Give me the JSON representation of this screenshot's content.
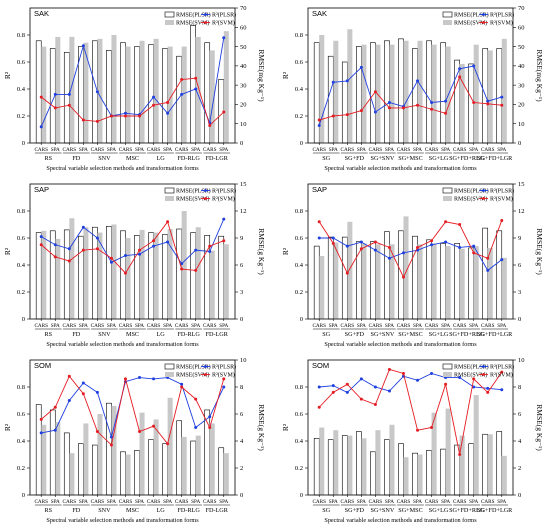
{
  "colors": {
    "plsr_line": "#1f3fe0",
    "svm_line": "#e51c23",
    "bar_plsr_edge": "#000000",
    "bar_svm_fill": "#c8c8c8"
  },
  "chart_data": [
    {
      "type": "bar",
      "title": "SAK",
      "ylabel": "R²",
      "y2label": "RMSE(mg Kg⁻¹)",
      "xlabel": "Spectral variable selection methods and transformation forms",
      "ylim": [
        0,
        1.0
      ],
      "yticks": [
        0,
        0.2,
        0.4,
        0.6,
        0.8
      ],
      "y2lim": [
        0,
        70
      ],
      "y2ticks": [
        0,
        10,
        20,
        30,
        40,
        50,
        60,
        70
      ],
      "categories": [
        "CARS",
        "SPA",
        "CARS",
        "SPA",
        "CARS",
        "SPA",
        "CARS",
        "SPA",
        "CARS",
        "SPA",
        "CARS",
        "SPA",
        "CARS",
        "SPA"
      ],
      "groups": [
        "RS",
        "FD",
        "SNV",
        "MSC",
        "LG",
        "FD-RLG",
        "FD-LGR"
      ],
      "series": [
        {
          "name": "RMSE(PLSR)",
          "kind": "bar",
          "axis": "right",
          "values": [
            53,
            49,
            47,
            50,
            53,
            48,
            52,
            50,
            51,
            49,
            45,
            61,
            52,
            33
          ]
        },
        {
          "name": "RMSE(SVM)",
          "kind": "bar",
          "axis": "right",
          "values": [
            50,
            55,
            55,
            52,
            54,
            56,
            50,
            53,
            54,
            50,
            50,
            55,
            48,
            58
          ]
        },
        {
          "name": "R²(PLSR)",
          "kind": "line",
          "axis": "left",
          "values": [
            0.12,
            0.36,
            0.36,
            0.72,
            0.38,
            0.2,
            0.22,
            0.21,
            0.34,
            0.22,
            0.36,
            0.4,
            0.15,
            0.78
          ]
        },
        {
          "name": "R²(SVM)",
          "kind": "line",
          "axis": "left",
          "values": [
            0.34,
            0.26,
            0.28,
            0.17,
            0.16,
            0.2,
            0.2,
            0.2,
            0.28,
            0.3,
            0.47,
            0.48,
            0.13,
            0.23
          ]
        }
      ]
    },
    {
      "type": "bar",
      "title": "SAK",
      "ylabel": "R²",
      "y2label": "RMSE(mg Kg⁻¹)",
      "xlabel": "Spectral variable selection methods and transformation forms",
      "ylim": [
        0,
        1.0
      ],
      "yticks": [
        0,
        0.2,
        0.4,
        0.6,
        0.8
      ],
      "y2lim": [
        0,
        70
      ],
      "y2ticks": [
        0,
        10,
        20,
        30,
        40,
        50,
        60,
        70
      ],
      "categories": [
        "CARS",
        "SPA",
        "CARS",
        "SPA",
        "CARS",
        "SPA",
        "CARS",
        "SPA",
        "CARS",
        "SPA",
        "CARS",
        "SPA",
        "CARS",
        "SPA"
      ],
      "groups": [
        "SG",
        "SG+FD",
        "SG+SNV",
        "SG+MSC",
        "SG+LG",
        "SG+FD+RLG",
        "SG+FD+LGR"
      ],
      "series": [
        {
          "name": "RMSE(PLSR)",
          "kind": "bar",
          "axis": "right",
          "values": [
            52,
            45,
            42,
            50,
            52,
            53,
            54,
            49,
            53,
            52,
            43,
            41,
            49,
            49
          ]
        },
        {
          "name": "RMSE(SVM)",
          "kind": "bar",
          "axis": "right",
          "values": [
            56,
            53,
            59,
            51,
            51,
            51,
            53,
            53,
            51,
            50,
            41,
            51,
            48,
            54
          ]
        },
        {
          "name": "R²(PLSR)",
          "kind": "line",
          "axis": "left",
          "values": [
            0.13,
            0.45,
            0.46,
            0.56,
            0.23,
            0.3,
            0.27,
            0.46,
            0.3,
            0.31,
            0.55,
            0.57,
            0.31,
            0.34
          ]
        },
        {
          "name": "R²(SVM)",
          "kind": "line",
          "axis": "left",
          "values": [
            0.17,
            0.2,
            0.21,
            0.24,
            0.38,
            0.26,
            0.26,
            0.28,
            0.25,
            0.22,
            0.49,
            0.3,
            0.29,
            0.28
          ]
        }
      ]
    },
    {
      "type": "bar",
      "title": "SAP",
      "ylabel": "R²",
      "y2label": "RMSE(g Kg⁻¹)",
      "xlabel": "Spectral variable selection methods and transformation forms",
      "ylim": [
        0,
        1.0
      ],
      "yticks": [
        0,
        0.2,
        0.4,
        0.6,
        0.8
      ],
      "y2lim": [
        0,
        15
      ],
      "y2ticks": [
        0,
        3,
        6,
        9,
        12,
        15
      ],
      "categories": [
        "CARS",
        "SPA",
        "CARS",
        "SPA",
        "CARS",
        "SPA",
        "CARS",
        "SPA",
        "CARS",
        "SPA",
        "CARS",
        "SPA",
        "CARS",
        "SPA"
      ],
      "groups": [
        "RS",
        "FD",
        "SNV",
        "MSC",
        "LG",
        "FD-RLG",
        "FD-LGR"
      ],
      "series": [
        {
          "name": "RMSE(PLSR)",
          "kind": "bar",
          "axis": "right",
          "values": [
            9.6,
            9.8,
            9.9,
            9.2,
            10.2,
            10.3,
            9.8,
            9.3,
            9.6,
            9.4,
            10.0,
            9.6,
            9.3,
            9.2
          ]
        },
        {
          "name": "RMSE(SVM)",
          "kind": "bar",
          "axis": "right",
          "values": [
            9.8,
            8.9,
            11.2,
            10.2,
            9.6,
            10.5,
            9.0,
            9.9,
            9.6,
            10.0,
            12.0,
            10.2,
            7.6,
            8.3
          ]
        },
        {
          "name": "R²(PLSR)",
          "kind": "line",
          "axis": "left",
          "values": [
            0.61,
            0.55,
            0.52,
            0.68,
            0.6,
            0.42,
            0.47,
            0.48,
            0.54,
            0.57,
            0.41,
            0.51,
            0.5,
            0.74
          ]
        },
        {
          "name": "R²(SVM)",
          "kind": "line",
          "axis": "left",
          "values": [
            0.55,
            0.46,
            0.43,
            0.51,
            0.52,
            0.45,
            0.34,
            0.51,
            0.58,
            0.72,
            0.37,
            0.36,
            0.54,
            0.58
          ]
        }
      ]
    },
    {
      "type": "bar",
      "title": "SAP",
      "ylabel": "R²",
      "y2label": "RMSE(g Kg⁻¹)",
      "xlabel": "Spectral variable selection methods and transformation forms",
      "ylim": [
        0,
        1.0
      ],
      "yticks": [
        0,
        0.2,
        0.4,
        0.6,
        0.8
      ],
      "y2lim": [
        0,
        15
      ],
      "y2ticks": [
        0,
        3,
        6,
        9,
        12,
        15
      ],
      "categories": [
        "CARS",
        "SPA",
        "CARS",
        "SPA",
        "CARS",
        "SPA",
        "CARS",
        "SPA",
        "CARS",
        "SPA",
        "CARS",
        "SPA",
        "CARS",
        "SPA"
      ],
      "groups": [
        "SG",
        "SG+FD",
        "SG+SNV",
        "SG+MSC",
        "SG+LG",
        "SG+FD+RLG",
        "SG+FD+LGR"
      ],
      "series": [
        {
          "name": "RMSE(PLSR)",
          "kind": "bar",
          "axis": "right",
          "values": [
            8.1,
            9.1,
            9.1,
            8.6,
            8.6,
            9.7,
            9.8,
            9.2,
            8.8,
            8.4,
            8.4,
            7.9,
            10.1,
            9.8
          ]
        },
        {
          "name": "RMSE(SVM)",
          "kind": "bar",
          "axis": "right",
          "values": [
            7.0,
            8.5,
            10.8,
            8.4,
            8.3,
            8.3,
            11.4,
            8.3,
            8.4,
            8.1,
            7.8,
            8.1,
            7.9,
            6.8
          ]
        },
        {
          "name": "R²(PLSR)",
          "kind": "line",
          "axis": "left",
          "values": [
            0.6,
            0.6,
            0.54,
            0.57,
            0.51,
            0.45,
            0.49,
            0.51,
            0.55,
            0.57,
            0.53,
            0.54,
            0.36,
            0.44
          ]
        },
        {
          "name": "R²(SVM)",
          "kind": "line",
          "axis": "left",
          "values": [
            0.72,
            0.56,
            0.34,
            0.52,
            0.57,
            0.53,
            0.31,
            0.53,
            0.58,
            0.72,
            0.7,
            0.49,
            0.45,
            0.73
          ]
        }
      ]
    },
    {
      "type": "bar",
      "title": "SOM",
      "ylabel": "R²",
      "y2label": "RMSE(g Kg⁻¹)",
      "xlabel": "Spectral variable selection methods and transformation forms",
      "ylim": [
        0,
        1.0
      ],
      "yticks": [
        0,
        0.2,
        0.4,
        0.6,
        0.8
      ],
      "y2lim": [
        0,
        10
      ],
      "y2ticks": [
        0,
        2,
        4,
        6,
        8,
        10
      ],
      "categories": [
        "CARS",
        "SPA",
        "CARS",
        "SPA",
        "CARS",
        "SPA",
        "CARS",
        "SPA",
        "CARS",
        "SPA",
        "CARS",
        "SPA",
        "CARS",
        "SPA"
      ],
      "groups": [
        "RS",
        "FD",
        "SNV",
        "MSC",
        "LG",
        "FD-RLG",
        "FD-LGR"
      ],
      "series": [
        {
          "name": "RMSE(PLSR)",
          "kind": "bar",
          "axis": "right",
          "values": [
            6.7,
            6.3,
            4.6,
            3.8,
            3.7,
            6.8,
            3.2,
            3.3,
            4.1,
            3.8,
            5.5,
            4.0,
            6.3,
            3.5
          ]
        },
        {
          "name": "RMSE(SVM)",
          "kind": "bar",
          "axis": "right",
          "values": [
            5.2,
            5.4,
            3.1,
            5.3,
            6.0,
            6.6,
            3.0,
            6.1,
            5.6,
            7.2,
            4.3,
            4.4,
            5.3,
            3.1
          ]
        },
        {
          "name": "R²(PLSR)",
          "kind": "line",
          "axis": "left",
          "values": [
            0.46,
            0.48,
            0.7,
            0.83,
            0.76,
            0.43,
            0.84,
            0.87,
            0.86,
            0.87,
            0.82,
            0.5,
            0.58,
            0.8
          ]
        },
        {
          "name": "R²(SVM)",
          "kind": "line",
          "axis": "left",
          "values": [
            0.56,
            0.65,
            0.88,
            0.75,
            0.47,
            0.37,
            0.86,
            0.47,
            0.51,
            0.38,
            0.8,
            0.71,
            0.5,
            0.86
          ]
        }
      ]
    },
    {
      "type": "bar",
      "title": "SOM",
      "ylabel": "R²",
      "y2label": "RMSE(g Kg⁻¹)",
      "xlabel": "Spectral variable selection methods and transformation forms",
      "ylim": [
        0,
        1.0
      ],
      "yticks": [
        0,
        0.2,
        0.4,
        0.6,
        0.8
      ],
      "y2lim": [
        0,
        10
      ],
      "y2ticks": [
        0,
        2,
        4,
        6,
        8,
        10
      ],
      "categories": [
        "CARS",
        "SPA",
        "CARS",
        "SPA",
        "CARS",
        "SPA",
        "CARS",
        "SPA",
        "CARS",
        "SPA",
        "CARS",
        "SPA",
        "CARS",
        "SPA"
      ],
      "groups": [
        "SG",
        "SG+FD",
        "SG+SNV",
        "SG+MSC",
        "SG+LG",
        "SG+FD+RLG",
        "SG+FD+LGR"
      ],
      "series": [
        {
          "name": "RMSE(PLSR)",
          "kind": "bar",
          "axis": "right",
          "values": [
            4.2,
            4.1,
            4.4,
            4.7,
            3.2,
            4.1,
            3.8,
            3.1,
            3.3,
            3.4,
            3.7,
            3.8,
            4.5,
            4.7
          ]
        },
        {
          "name": "RMSE(SVM)",
          "kind": "bar",
          "axis": "right",
          "values": [
            5.0,
            4.8,
            4.4,
            4.2,
            4.8,
            5.2,
            2.8,
            3.0,
            6.1,
            6.4,
            4.4,
            7.4,
            4.5,
            2.9
          ]
        },
        {
          "name": "R²(PLSR)",
          "kind": "line",
          "axis": "left",
          "values": [
            0.8,
            0.81,
            0.76,
            0.86,
            0.8,
            0.77,
            0.88,
            0.85,
            0.9,
            0.87,
            0.87,
            0.8,
            0.79,
            0.78
          ]
        },
        {
          "name": "R²(SVM)",
          "kind": "line",
          "axis": "left",
          "values": [
            0.65,
            0.76,
            0.82,
            0.71,
            0.67,
            0.93,
            0.9,
            0.48,
            0.5,
            0.82,
            0.3,
            0.86,
            0.76,
            0.91
          ]
        }
      ]
    }
  ]
}
